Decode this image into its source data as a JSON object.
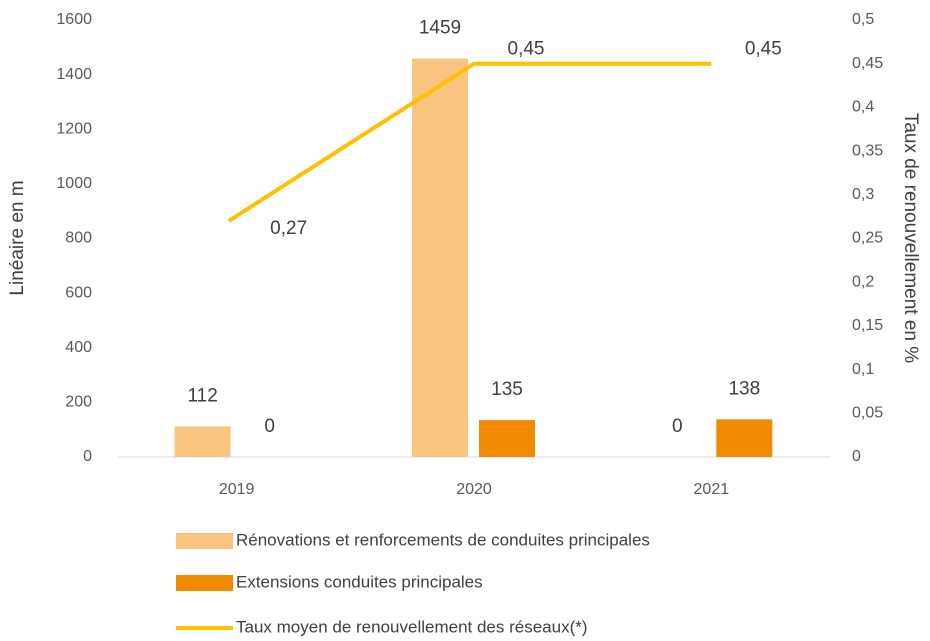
{
  "chart_data": {
    "type": "bar",
    "y_label": "Linéaire en m",
    "y2_label": "Taux de renouvellement en %",
    "categories": [
      "2019",
      "2020",
      "2021"
    ],
    "series": [
      {
        "name": "Rénovations et renforcements de conduites principales",
        "color": "#f8c47f",
        "values": [
          112,
          1459,
          0
        ]
      },
      {
        "name": "Extensions conduites principales",
        "color": "#f08a00",
        "values": [
          0,
          135,
          138
        ]
      },
      {
        "name": "Taux moyen de renouvellement des réseaux(*)",
        "type": "line",
        "axis": "y2",
        "color": "#ffc000",
        "values": [
          0.27,
          0.45,
          0.45
        ],
        "value_labels": [
          "0,27",
          "0,45",
          "0,45"
        ]
      }
    ],
    "ylim": [
      0,
      1600
    ],
    "yticks": [
      0,
      200,
      400,
      600,
      800,
      1000,
      1200,
      1400,
      1600
    ],
    "y2lim": [
      0,
      0.5
    ],
    "y2ticks": [
      0,
      {
        "value": 0.05,
        "label": "0,05"
      },
      {
        "value": 0.1,
        "label": "0,1"
      },
      {
        "value": 0.15,
        "label": "0,15"
      },
      {
        "value": 0.2,
        "label": "0,2"
      },
      {
        "value": 0.25,
        "label": "0,25"
      },
      {
        "value": 0.3,
        "label": "0,3"
      },
      {
        "value": 0.35,
        "label": "0,35"
      },
      {
        "value": 0.4,
        "label": "0,4"
      },
      {
        "value": 0.45,
        "label": "0,45"
      },
      {
        "value": 0.5,
        "label": "0,5"
      }
    ],
    "grid": false
  }
}
